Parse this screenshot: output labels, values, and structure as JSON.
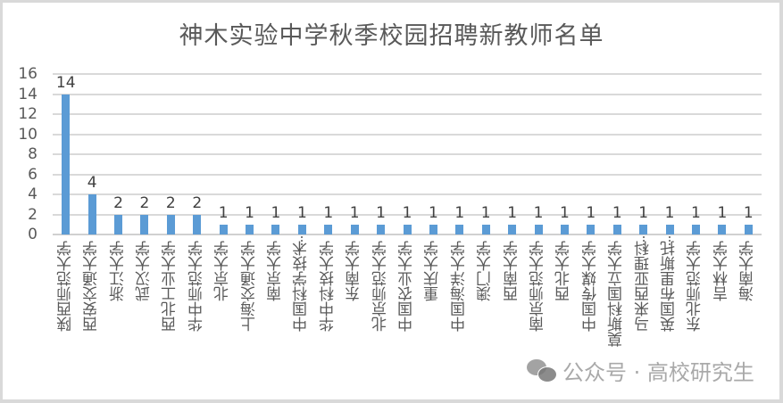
{
  "chart_data": {
    "type": "bar",
    "title": "神木实验中学秋季校园招聘新教师名单",
    "xlabel": "",
    "ylabel": "",
    "ylim": [
      0,
      16
    ],
    "yticks": [
      0,
      2,
      4,
      6,
      8,
      10,
      12,
      14,
      16
    ],
    "grid": true,
    "legend": null,
    "bar_color": "#5b9bd5",
    "data_labels": true,
    "categories": [
      "陕西师范大学",
      "西安交通大学",
      "浙江大学",
      "武汉大学",
      "西北工业大学",
      "华中师范大学",
      "北京大学",
      "上海交通大学",
      "南京大学",
      "中国科学技术…",
      "华中科技大学",
      "东南大学",
      "北京师范大学",
      "中国农业大学",
      "重庆大学",
      "中国海洋大学",
      "澳门大学",
      "西南大学",
      "南京师范大学",
      "西北大学",
      "中国传媒大学",
      "莫斯科国立大学",
      "马来西亚理科…",
      "英国布里斯托…",
      "东北师范大学",
      "吉林大学",
      "海南大学"
    ],
    "values": [
      14,
      4,
      2,
      2,
      2,
      2,
      1,
      1,
      1,
      1,
      1,
      1,
      1,
      1,
      1,
      1,
      1,
      1,
      1,
      1,
      1,
      1,
      1,
      1,
      1,
      1,
      1
    ]
  },
  "watermark": {
    "text": "公众号 · 高校研究生",
    "icon": "wechat-icon"
  }
}
